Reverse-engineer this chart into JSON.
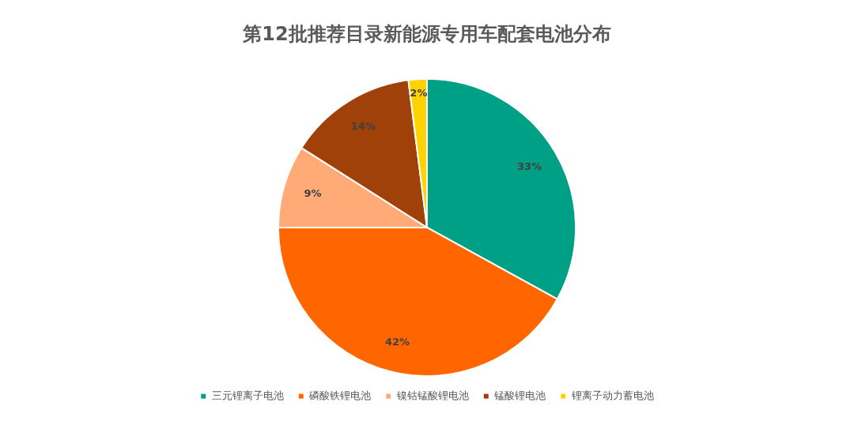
{
  "chart_data": {
    "type": "pie",
    "title": "第12批推荐目录新能源专用车配套电池分布",
    "categories": [
      "三元锂离子电池",
      "磷酸铁锂电池",
      "镍钴锰酸锂电池",
      "锰酸锂电池",
      "锂离子动力蓄电池"
    ],
    "values": [
      33,
      42,
      9,
      14,
      2
    ],
    "colors": [
      "#00a086",
      "#ff6600",
      "#ffaa77",
      "#a0410a",
      "#ffd200"
    ],
    "value_labels": [
      "33%",
      "42%",
      "9%",
      "14%",
      "2%"
    ],
    "legend": "bottom"
  }
}
